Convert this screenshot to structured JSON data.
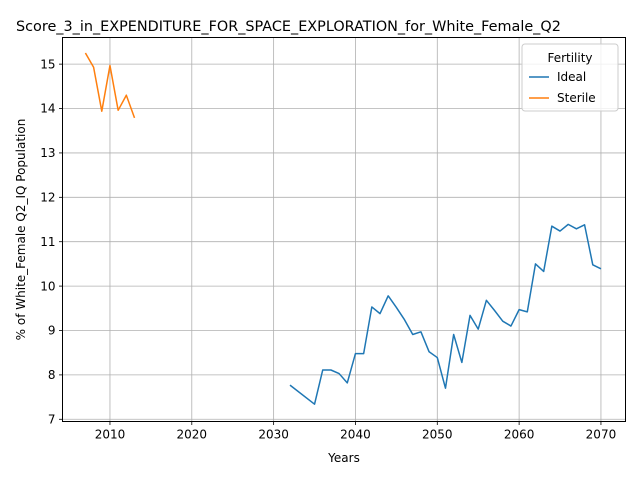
{
  "chart_data": {
    "type": "line",
    "title": "Score_3_in_EXPENDITURE_FOR_SPACE_EXPLORATION_for_White_Female_Q2",
    "xlabel": "Years",
    "ylabel": "% of White_Female Q2_IQ Population",
    "xlim": [
      2004.2,
      2073.0
    ],
    "ylim": [
      6.95,
      15.6
    ],
    "xticks": [
      2010,
      2020,
      2030,
      2040,
      2050,
      2060,
      2070
    ],
    "yticks": [
      7,
      8,
      9,
      10,
      11,
      12,
      13,
      14,
      15
    ],
    "grid": true,
    "legend": {
      "title": "Fertility",
      "position": "upper right"
    },
    "series": [
      {
        "name": "Ideal",
        "color": "#1f77b4",
        "x": [
          2032,
          2035,
          2036,
          2037,
          2038,
          2039,
          2040,
          2041,
          2042,
          2043,
          2044,
          2045,
          2046,
          2047,
          2048,
          2049,
          2050,
          2051,
          2052,
          2053,
          2054,
          2055,
          2056,
          2057,
          2058,
          2059,
          2060,
          2061,
          2062,
          2063,
          2064,
          2065,
          2066,
          2067,
          2068,
          2069,
          2070
        ],
        "y": [
          7.77,
          7.34,
          8.11,
          8.11,
          8.03,
          7.82,
          8.48,
          8.48,
          9.53,
          9.38,
          9.78,
          9.52,
          9.24,
          8.91,
          8.97,
          8.52,
          8.39,
          7.7,
          8.91,
          8.28,
          9.34,
          9.03,
          9.68,
          9.45,
          9.21,
          9.1,
          9.47,
          9.42,
          10.5,
          10.33,
          11.35,
          11.24,
          11.39,
          11.29,
          11.38,
          10.48,
          10.39
        ]
      },
      {
        "name": "Sterile",
        "color": "#ff7f0e",
        "x": [
          2007,
          2008,
          2009,
          2010,
          2011,
          2012,
          2013
        ],
        "y": [
          15.25,
          14.93,
          13.94,
          14.97,
          13.96,
          14.3,
          13.79
        ]
      }
    ]
  }
}
